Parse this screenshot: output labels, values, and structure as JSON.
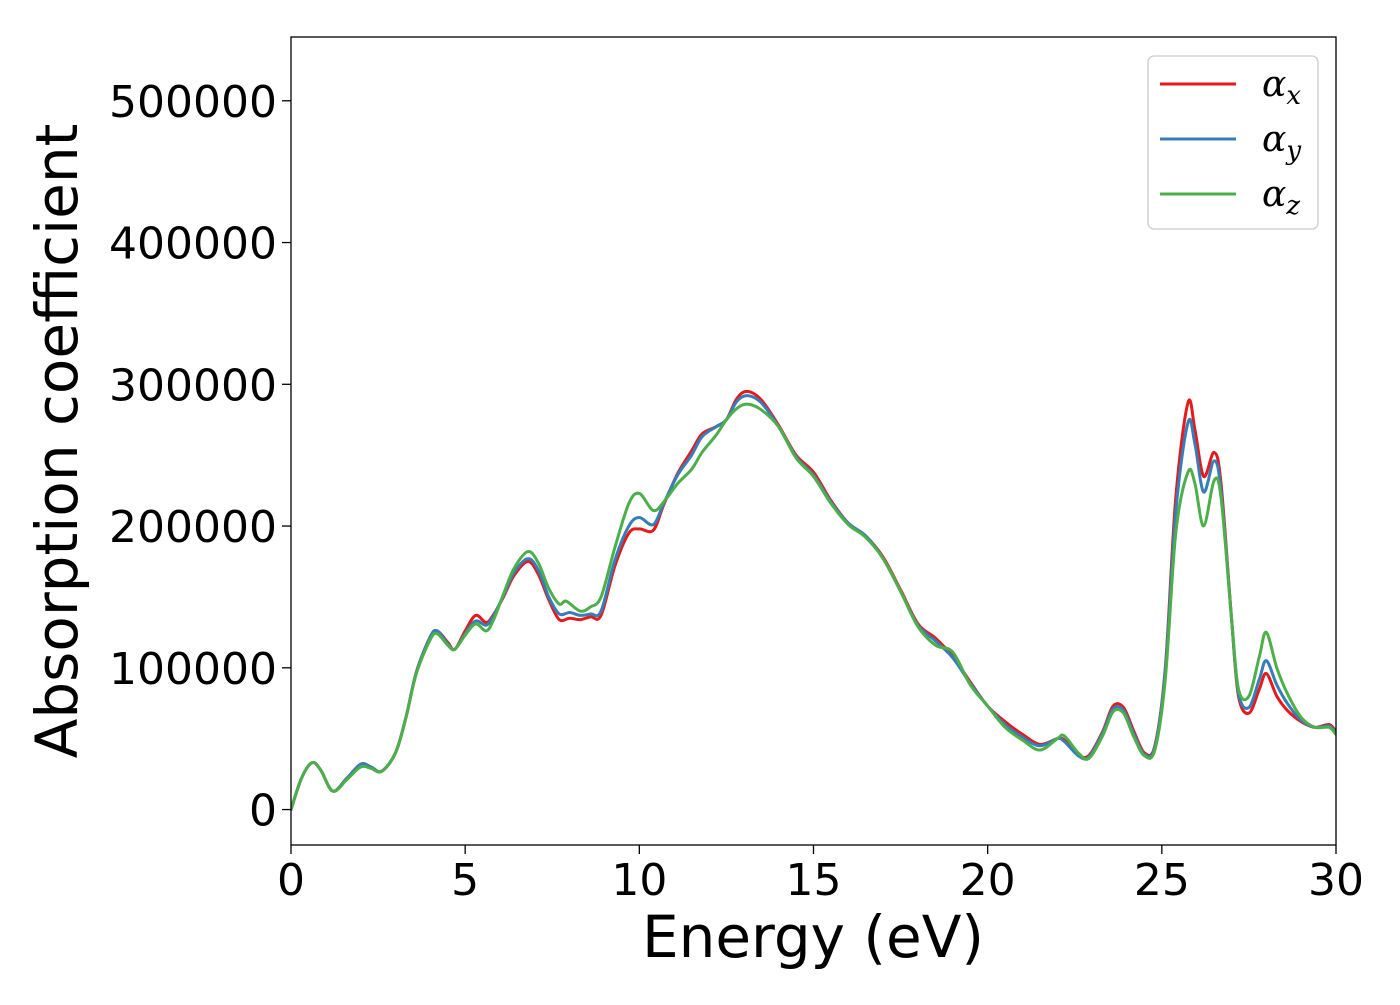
{
  "chart_data": {
    "type": "line",
    "title": "",
    "xlabel": "Energy (eV)",
    "ylabel": "Absorption coefficient",
    "xlim": [
      0,
      30
    ],
    "ylim": [
      -25000,
      545000
    ],
    "xticks": [
      0,
      5,
      10,
      15,
      20,
      25,
      30
    ],
    "xtick_labels": [
      "0",
      "5",
      "10",
      "15",
      "20",
      "25",
      "30"
    ],
    "yticks": [
      0,
      100000,
      200000,
      300000,
      400000,
      500000
    ],
    "ytick_labels": [
      "0",
      "100000",
      "200000",
      "300000",
      "400000",
      "500000"
    ],
    "grid": false,
    "legend_position": "top-right",
    "series": [
      {
        "name": "αx",
        "name_base": "α",
        "name_sub": "x",
        "color": "#e41a1c",
        "points": [
          [
            0,
            0
          ],
          [
            0.3,
            22000
          ],
          [
            0.6,
            33000
          ],
          [
            0.85,
            28000
          ],
          [
            1.2,
            13000
          ],
          [
            1.6,
            22000
          ],
          [
            2.0,
            32000
          ],
          [
            2.3,
            30000
          ],
          [
            2.6,
            27000
          ],
          [
            3.0,
            40000
          ],
          [
            3.3,
            65000
          ],
          [
            3.6,
            97000
          ],
          [
            4.0,
            122000
          ],
          [
            4.2,
            126000
          ],
          [
            4.5,
            118000
          ],
          [
            4.7,
            113000
          ],
          [
            5.0,
            126000
          ],
          [
            5.3,
            137000
          ],
          [
            5.6,
            132000
          ],
          [
            5.8,
            137000
          ],
          [
            6.1,
            150000
          ],
          [
            6.4,
            165000
          ],
          [
            6.8,
            175000
          ],
          [
            7.1,
            166000
          ],
          [
            7.4,
            148000
          ],
          [
            7.7,
            134000
          ],
          [
            8.0,
            135000
          ],
          [
            8.3,
            134000
          ],
          [
            8.6,
            136000
          ],
          [
            8.9,
            137000
          ],
          [
            9.3,
            172000
          ],
          [
            9.7,
            195000
          ],
          [
            10.0,
            198000
          ],
          [
            10.4,
            197000
          ],
          [
            10.7,
            215000
          ],
          [
            11.1,
            237000
          ],
          [
            11.5,
            253000
          ],
          [
            11.8,
            265000
          ],
          [
            12.2,
            270000
          ],
          [
            12.5,
            275000
          ],
          [
            12.8,
            290000
          ],
          [
            13.1,
            295000
          ],
          [
            13.5,
            289000
          ],
          [
            14.0,
            271000
          ],
          [
            14.5,
            250000
          ],
          [
            15.0,
            238000
          ],
          [
            15.5,
            218000
          ],
          [
            16.0,
            202000
          ],
          [
            16.5,
            193000
          ],
          [
            17.0,
            178000
          ],
          [
            17.5,
            155000
          ],
          [
            18.0,
            131000
          ],
          [
            18.5,
            121000
          ],
          [
            19.0,
            108000
          ],
          [
            19.5,
            90000
          ],
          [
            20.0,
            73000
          ],
          [
            20.5,
            62000
          ],
          [
            21.0,
            53000
          ],
          [
            21.5,
            46000
          ],
          [
            22.0,
            50000
          ],
          [
            22.2,
            49000
          ],
          [
            22.6,
            39000
          ],
          [
            22.9,
            38000
          ],
          [
            23.3,
            55000
          ],
          [
            23.6,
            73000
          ],
          [
            23.9,
            72000
          ],
          [
            24.2,
            55000
          ],
          [
            24.5,
            40000
          ],
          [
            24.8,
            45000
          ],
          [
            25.1,
            100000
          ],
          [
            25.4,
            220000
          ],
          [
            25.75,
            287000
          ],
          [
            25.95,
            268000
          ],
          [
            26.2,
            235000
          ],
          [
            26.5,
            252000
          ],
          [
            26.7,
            230000
          ],
          [
            27.0,
            135000
          ],
          [
            27.2,
            80000
          ],
          [
            27.5,
            68000
          ],
          [
            27.8,
            85000
          ],
          [
            28.0,
            96000
          ],
          [
            28.3,
            80000
          ],
          [
            28.6,
            70000
          ],
          [
            29.0,
            62000
          ],
          [
            29.4,
            58000
          ],
          [
            29.8,
            60000
          ],
          [
            30.0,
            55000
          ]
        ]
      },
      {
        "name": "αy",
        "name_base": "α",
        "name_sub": "y",
        "color": "#377eb8",
        "points": [
          [
            0,
            0
          ],
          [
            0.3,
            22000
          ],
          [
            0.6,
            33000
          ],
          [
            0.85,
            28000
          ],
          [
            1.2,
            13000
          ],
          [
            1.6,
            22000
          ],
          [
            2.0,
            32000
          ],
          [
            2.3,
            30000
          ],
          [
            2.6,
            27000
          ],
          [
            3.0,
            40000
          ],
          [
            3.3,
            65000
          ],
          [
            3.6,
            97000
          ],
          [
            4.0,
            122000
          ],
          [
            4.2,
            126000
          ],
          [
            4.5,
            117000
          ],
          [
            4.7,
            113000
          ],
          [
            5.0,
            124000
          ],
          [
            5.3,
            133000
          ],
          [
            5.6,
            130000
          ],
          [
            5.8,
            136000
          ],
          [
            6.1,
            151000
          ],
          [
            6.4,
            167000
          ],
          [
            6.8,
            177000
          ],
          [
            7.1,
            169000
          ],
          [
            7.4,
            150000
          ],
          [
            7.7,
            138000
          ],
          [
            8.0,
            139000
          ],
          [
            8.3,
            137000
          ],
          [
            8.6,
            138000
          ],
          [
            8.9,
            140000
          ],
          [
            9.3,
            176000
          ],
          [
            9.7,
            200000
          ],
          [
            10.0,
            206000
          ],
          [
            10.4,
            201000
          ],
          [
            10.7,
            216000
          ],
          [
            11.1,
            236000
          ],
          [
            11.5,
            250000
          ],
          [
            11.8,
            263000
          ],
          [
            12.2,
            270000
          ],
          [
            12.5,
            275000
          ],
          [
            12.8,
            288000
          ],
          [
            13.1,
            292000
          ],
          [
            13.5,
            287000
          ],
          [
            14.0,
            270000
          ],
          [
            14.5,
            249000
          ],
          [
            15.0,
            236000
          ],
          [
            15.5,
            217000
          ],
          [
            16.0,
            202000
          ],
          [
            16.5,
            193000
          ],
          [
            17.0,
            177000
          ],
          [
            17.5,
            154000
          ],
          [
            18.0,
            130000
          ],
          [
            18.5,
            119000
          ],
          [
            19.0,
            107000
          ],
          [
            19.5,
            89000
          ],
          [
            20.0,
            73000
          ],
          [
            20.5,
            60000
          ],
          [
            21.0,
            51000
          ],
          [
            21.5,
            45000
          ],
          [
            22.0,
            50000
          ],
          [
            22.2,
            48000
          ],
          [
            22.6,
            38000
          ],
          [
            22.9,
            37000
          ],
          [
            23.3,
            54000
          ],
          [
            23.6,
            71000
          ],
          [
            23.9,
            70000
          ],
          [
            24.2,
            53000
          ],
          [
            24.5,
            39000
          ],
          [
            24.8,
            44000
          ],
          [
            25.1,
            98000
          ],
          [
            25.4,
            210000
          ],
          [
            25.75,
            273000
          ],
          [
            25.95,
            258000
          ],
          [
            26.2,
            224000
          ],
          [
            26.5,
            246000
          ],
          [
            26.7,
            225000
          ],
          [
            27.0,
            135000
          ],
          [
            27.2,
            82000
          ],
          [
            27.5,
            72000
          ],
          [
            27.8,
            92000
          ],
          [
            28.0,
            105000
          ],
          [
            28.3,
            88000
          ],
          [
            28.6,
            75000
          ],
          [
            29.0,
            63000
          ],
          [
            29.4,
            58000
          ],
          [
            29.8,
            59000
          ],
          [
            30.0,
            54000
          ]
        ]
      },
      {
        "name": "αz",
        "name_base": "α",
        "name_sub": "z",
        "color": "#4daf4a",
        "points": [
          [
            0,
            0
          ],
          [
            0.3,
            22000
          ],
          [
            0.6,
            33000
          ],
          [
            0.85,
            28000
          ],
          [
            1.2,
            13000
          ],
          [
            1.6,
            21000
          ],
          [
            2.0,
            30000
          ],
          [
            2.3,
            29000
          ],
          [
            2.6,
            27000
          ],
          [
            3.0,
            40000
          ],
          [
            3.3,
            65000
          ],
          [
            3.6,
            96000
          ],
          [
            4.0,
            120000
          ],
          [
            4.2,
            124000
          ],
          [
            4.5,
            116000
          ],
          [
            4.7,
            113000
          ],
          [
            5.0,
            123000
          ],
          [
            5.3,
            131000
          ],
          [
            5.6,
            126000
          ],
          [
            5.8,
            133000
          ],
          [
            6.1,
            152000
          ],
          [
            6.4,
            170000
          ],
          [
            6.8,
            182000
          ],
          [
            7.1,
            174000
          ],
          [
            7.4,
            156000
          ],
          [
            7.7,
            145000
          ],
          [
            7.9,
            147000
          ],
          [
            8.3,
            140000
          ],
          [
            8.6,
            143000
          ],
          [
            8.9,
            150000
          ],
          [
            9.3,
            185000
          ],
          [
            9.7,
            216000
          ],
          [
            10.0,
            223000
          ],
          [
            10.4,
            211000
          ],
          [
            10.7,
            217000
          ],
          [
            11.1,
            230000
          ],
          [
            11.5,
            240000
          ],
          [
            11.8,
            252000
          ],
          [
            12.2,
            264000
          ],
          [
            12.5,
            275000
          ],
          [
            12.8,
            283000
          ],
          [
            13.1,
            286000
          ],
          [
            13.5,
            282000
          ],
          [
            14.0,
            270000
          ],
          [
            14.5,
            248000
          ],
          [
            15.0,
            235000
          ],
          [
            15.5,
            216000
          ],
          [
            16.0,
            201000
          ],
          [
            16.5,
            192000
          ],
          [
            17.0,
            177000
          ],
          [
            17.5,
            154000
          ],
          [
            18.0,
            129000
          ],
          [
            18.5,
            116000
          ],
          [
            19.0,
            111000
          ],
          [
            19.5,
            88000
          ],
          [
            20.0,
            73000
          ],
          [
            20.5,
            58000
          ],
          [
            21.0,
            49000
          ],
          [
            21.5,
            42000
          ],
          [
            22.0,
            50000
          ],
          [
            22.2,
            52000
          ],
          [
            22.6,
            40000
          ],
          [
            22.9,
            36000
          ],
          [
            23.3,
            52000
          ],
          [
            23.6,
            69000
          ],
          [
            23.9,
            68000
          ],
          [
            24.2,
            51000
          ],
          [
            24.5,
            38000
          ],
          [
            24.8,
            42000
          ],
          [
            25.1,
            92000
          ],
          [
            25.4,
            195000
          ],
          [
            25.75,
            238000
          ],
          [
            25.95,
            230000
          ],
          [
            26.2,
            200000
          ],
          [
            26.5,
            232000
          ],
          [
            26.7,
            220000
          ],
          [
            27.0,
            135000
          ],
          [
            27.2,
            85000
          ],
          [
            27.5,
            80000
          ],
          [
            27.8,
            108000
          ],
          [
            28.0,
            125000
          ],
          [
            28.3,
            100000
          ],
          [
            28.6,
            82000
          ],
          [
            29.0,
            65000
          ],
          [
            29.4,
            58000
          ],
          [
            29.8,
            58000
          ],
          [
            30.0,
            53000
          ]
        ]
      }
    ]
  }
}
